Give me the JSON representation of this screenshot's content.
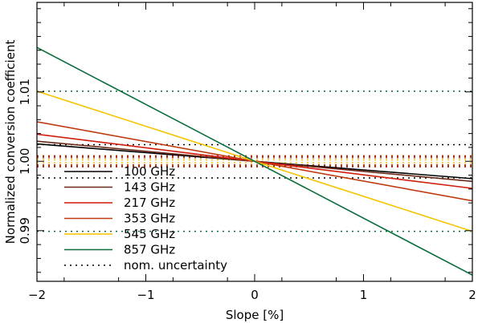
{
  "chart_data": {
    "type": "line",
    "title": "",
    "xlabel": "Slope [%]",
    "ylabel": "Normalized conversion coefficient",
    "xlim": [
      -2,
      2
    ],
    "ylim": [
      0.9827,
      1.0229
    ],
    "xticks": [
      -2,
      -1,
      0,
      1,
      2
    ],
    "xtick_labels": [
      "−2",
      "−1",
      "0",
      "1",
      "2"
    ],
    "yticks": [
      0.99,
      1.0,
      1.01
    ],
    "ytick_labels": [
      "0.99",
      "1.00",
      "1.01"
    ],
    "grid": false,
    "legend_position": "bottom-left",
    "x": [
      -2,
      2
    ],
    "series": [
      {
        "name": "100 GHz",
        "color": "#000000",
        "values": [
          1.0025,
          0.9975
        ]
      },
      {
        "name": "143 GHz",
        "color": "#6b2a1a",
        "values": [
          1.0029,
          0.9971
        ]
      },
      {
        "name": "217 GHz",
        "color": "#d01c0a",
        "values": [
          1.0039,
          0.9961
        ]
      },
      {
        "name": "353 GHz",
        "color": "#c03a10",
        "values": [
          1.0057,
          0.9943
        ]
      },
      {
        "name": "545 GHz",
        "color": "#f5c400",
        "values": [
          1.0101,
          0.9899
        ]
      },
      {
        "name": "857 GHz",
        "color": "#0a6e3c",
        "values": [
          1.0164,
          0.9836
        ]
      }
    ],
    "uncertainty_label": "nom. uncertainty",
    "uncertainty_bands": [
      {
        "series": "100 GHz",
        "color": "#000000",
        "values": [
          0.9976,
          1.0024
        ]
      },
      {
        "series": "143 GHz",
        "color": "#6b2a1a",
        "values": [
          0.9993,
          1.0007
        ]
      },
      {
        "series": "217 GHz",
        "color": "#d01c0a",
        "values": [
          0.9992,
          1.0008
        ]
      },
      {
        "series": "353 GHz",
        "color": "#c03a10",
        "values": [
          0.9995,
          1.0005
        ]
      },
      {
        "series": "545 GHz",
        "color": "#f5c400",
        "values": [
          0.9998,
          1.0002
        ]
      },
      {
        "series": "857 GHz",
        "color": "#0a6e3c",
        "values": [
          0.9899,
          1.0101
        ]
      }
    ]
  }
}
